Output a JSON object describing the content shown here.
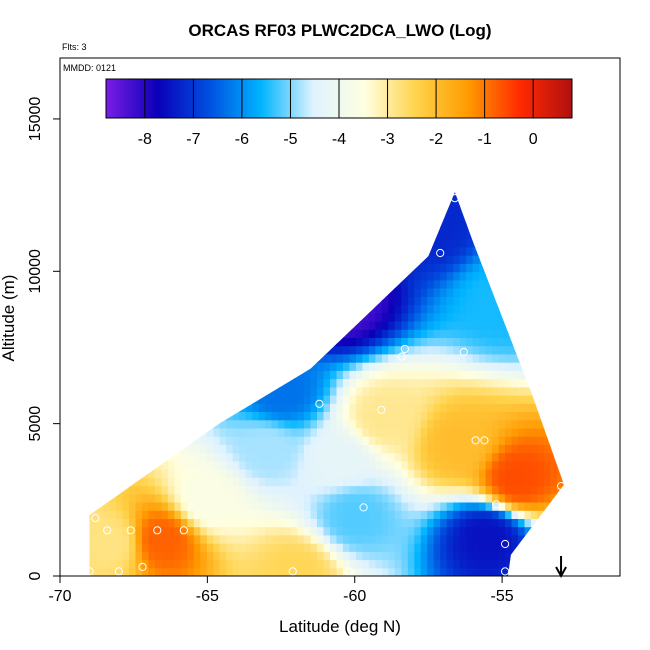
{
  "chart_data": {
    "type": "heatmap",
    "title": "ORCAS RF03 PLWC2DCA_LWO (Log)",
    "xlabel": "Latitude (deg N)",
    "ylabel": "Altitude (m)",
    "xlim": [
      -70,
      -51
    ],
    "ylim": [
      0,
      17000
    ],
    "x_ticks": [
      -70,
      -65,
      -60,
      -55
    ],
    "x_tick_labels": [
      "-70",
      "-65",
      "-60",
      "-55"
    ],
    "y_ticks": [
      0,
      5000,
      10000,
      15000
    ],
    "y_tick_labels": [
      "0",
      "5000",
      "10000",
      "15000"
    ],
    "annotations": {
      "flights": "Flts: 3",
      "date": "MMDD: 0121"
    },
    "colorbar": {
      "range": [
        -8.8,
        0.8
      ],
      "ticks": [
        -8,
        -7,
        -6,
        -5,
        -4,
        -3,
        -2,
        -1,
        0
      ],
      "tick_labels": [
        "-8",
        "-7",
        "-6",
        "-5",
        "-4",
        "-3",
        "-2",
        "-1",
        "0"
      ],
      "colors": [
        "#7a1de6",
        "#0a00b8",
        "#0050e0",
        "#00b4ff",
        "#dff2ff",
        "#ffffe0",
        "#ffd24a",
        "#ff9a00",
        "#ff2a00",
        "#b01010"
      ]
    },
    "domain_outline": {
      "description": "cross-section of flight coverage (latitude, altitude m)",
      "vertices": [
        [
          -69.0,
          2000
        ],
        [
          -64.6,
          5000
        ],
        [
          -61.5,
          6800
        ],
        [
          -57.5,
          10500
        ],
        [
          -56.6,
          12600
        ],
        [
          -56.0,
          11000
        ],
        [
          -54.0,
          6000
        ],
        [
          -52.9,
          3000
        ],
        [
          -54.7,
          700
        ],
        [
          -54.8,
          0
        ],
        [
          -69.0,
          0
        ]
      ]
    },
    "field_features": [
      {
        "lat": -60.5,
        "alt": 9000,
        "value": -8.3
      },
      {
        "lat": -57.5,
        "alt": 11500,
        "value": -7.2
      },
      {
        "lat": -62.5,
        "alt": 6000,
        "value": -6.3
      },
      {
        "lat": -55.0,
        "alt": 9000,
        "value": -5.5
      },
      {
        "lat": -59.0,
        "alt": 5200,
        "value": -2.9
      },
      {
        "lat": -54.5,
        "alt": 3200,
        "value": -0.6
      },
      {
        "lat": -56.5,
        "alt": 4300,
        "value": -2.0
      },
      {
        "lat": -66.5,
        "alt": 1200,
        "value": -0.8
      },
      {
        "lat": -68.3,
        "alt": 1100,
        "value": -2.8
      },
      {
        "lat": -55.5,
        "alt": 1300,
        "value": -7.5
      },
      {
        "lat": -60.0,
        "alt": 2000,
        "value": -5.2
      },
      {
        "lat": -60.5,
        "alt": 3800,
        "value": -4.3
      },
      {
        "lat": -65.0,
        "alt": 2500,
        "value": -3.6
      },
      {
        "lat": -63.0,
        "alt": 4200,
        "value": -4.8
      },
      {
        "lat": -62.0,
        "alt": 150,
        "value": -2.5
      }
    ],
    "sample_points": [
      {
        "lat": -56.6,
        "alt": 12400
      },
      {
        "lat": -57.1,
        "alt": 10600
      },
      {
        "lat": -63.5,
        "alt": 7050
      },
      {
        "lat": -58.3,
        "alt": 7450
      },
      {
        "lat": -58.4,
        "alt": 7200
      },
      {
        "lat": -56.3,
        "alt": 7350
      },
      {
        "lat": -61.2,
        "alt": 5650
      },
      {
        "lat": -59.1,
        "alt": 5450
      },
      {
        "lat": -55.9,
        "alt": 4450
      },
      {
        "lat": -55.6,
        "alt": 4450
      },
      {
        "lat": -53.0,
        "alt": 2950
      },
      {
        "lat": -55.2,
        "alt": 2350
      },
      {
        "lat": -59.7,
        "alt": 2250
      },
      {
        "lat": -68.8,
        "alt": 1900
      },
      {
        "lat": -68.4,
        "alt": 1500
      },
      {
        "lat": -67.6,
        "alt": 1500
      },
      {
        "lat": -66.7,
        "alt": 1500
      },
      {
        "lat": -65.8,
        "alt": 1500
      },
      {
        "lat": -54.9,
        "alt": 1050
      },
      {
        "lat": -67.2,
        "alt": 300
      },
      {
        "lat": -68.0,
        "alt": 150
      },
      {
        "lat": -62.1,
        "alt": 150
      },
      {
        "lat": -60.2,
        "alt": 150
      },
      {
        "lat": -69.0,
        "alt": 150
      },
      {
        "lat": -54.9,
        "alt": 150
      }
    ],
    "arrow_marker": {
      "lat": -53.0,
      "direction": "down"
    }
  }
}
